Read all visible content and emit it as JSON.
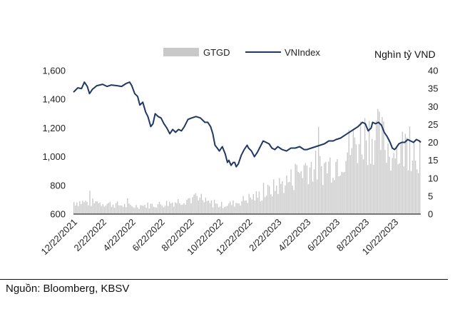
{
  "chart_data": {
    "type": "combo-bar-line",
    "title": "",
    "legend": [
      {
        "name": "GTGD",
        "kind": "bar",
        "color": "#c9c9c9"
      },
      {
        "name": "VNIndex",
        "kind": "line",
        "color": "#1f3864"
      }
    ],
    "legend_position": "top-center",
    "right_axis_label": "Nghìn tỷ VND",
    "left_axis": {
      "range": [
        600,
        1600
      ],
      "ticks": [
        "600",
        "800",
        "1,000",
        "1,200",
        "1,400",
        "1,600"
      ]
    },
    "right_axis": {
      "range": [
        0,
        40
      ],
      "ticks": [
        "0",
        "5",
        "10",
        "15",
        "20",
        "25",
        "30",
        "35",
        "40"
      ]
    },
    "x_tick_labels": [
      "12/22/2021",
      "2/22/2022",
      "4/22/2022",
      "6/22/2022",
      "8/22/2022",
      "10/22/2022",
      "12/22/2022",
      "2/22/2023",
      "4/22/2023",
      "6/22/2023",
      "8/22/2023",
      "10/22/2023"
    ],
    "x_range_months": [
      0,
      23.8
    ],
    "vnindex_series": [
      [
        0.0,
        1450
      ],
      [
        0.3,
        1480
      ],
      [
        0.55,
        1475
      ],
      [
        0.75,
        1520
      ],
      [
        0.95,
        1490
      ],
      [
        1.1,
        1440
      ],
      [
        1.3,
        1470
      ],
      [
        1.6,
        1495
      ],
      [
        2.0,
        1505
      ],
      [
        2.3,
        1490
      ],
      [
        2.6,
        1500
      ],
      [
        3.0,
        1495
      ],
      [
        3.3,
        1490
      ],
      [
        3.6,
        1510
      ],
      [
        3.85,
        1520
      ],
      [
        4.0,
        1495
      ],
      [
        4.2,
        1440
      ],
      [
        4.4,
        1420
      ],
      [
        4.55,
        1360
      ],
      [
        4.75,
        1380
      ],
      [
        4.95,
        1310
      ],
      [
        5.1,
        1280
      ],
      [
        5.3,
        1210
      ],
      [
        5.45,
        1230
      ],
      [
        5.6,
        1300
      ],
      [
        5.8,
        1280
      ],
      [
        6.0,
        1270
      ],
      [
        6.2,
        1230
      ],
      [
        6.4,
        1200
      ],
      [
        6.6,
        1160
      ],
      [
        6.8,
        1190
      ],
      [
        7.0,
        1170
      ],
      [
        7.2,
        1190
      ],
      [
        7.4,
        1180
      ],
      [
        7.6,
        1210
      ],
      [
        7.85,
        1260
      ],
      [
        8.1,
        1270
      ],
      [
        8.4,
        1280
      ],
      [
        8.7,
        1270
      ],
      [
        9.0,
        1240
      ],
      [
        9.2,
        1240
      ],
      [
        9.4,
        1210
      ],
      [
        9.55,
        1160
      ],
      [
        9.7,
        1080
      ],
      [
        9.85,
        1060
      ],
      [
        10.0,
        1040
      ],
      [
        10.2,
        1070
      ],
      [
        10.4,
        1020
      ],
      [
        10.55,
        960
      ],
      [
        10.65,
        975
      ],
      [
        10.8,
        940
      ],
      [
        10.95,
        960
      ],
      [
        11.05,
        960
      ],
      [
        11.15,
        930
      ],
      [
        11.3,
        950
      ],
      [
        11.5,
        1010
      ],
      [
        11.7,
        1050
      ],
      [
        11.9,
        1080
      ],
      [
        12.0,
        1060
      ],
      [
        12.2,
        1040
      ],
      [
        12.4,
        1000
      ],
      [
        12.6,
        1030
      ],
      [
        12.8,
        1070
      ],
      [
        13.0,
        1110
      ],
      [
        13.2,
        1100
      ],
      [
        13.4,
        1090
      ],
      [
        13.6,
        1060
      ],
      [
        13.8,
        1050
      ],
      [
        14.0,
        1070
      ],
      [
        14.3,
        1050
      ],
      [
        14.6,
        1040
      ],
      [
        14.9,
        1060
      ],
      [
        15.2,
        1060
      ],
      [
        15.5,
        1070
      ],
      [
        15.8,
        1050
      ],
      [
        16.0,
        1050
      ],
      [
        16.3,
        1060
      ],
      [
        16.6,
        1070
      ],
      [
        16.9,
        1080
      ],
      [
        17.2,
        1090
      ],
      [
        17.5,
        1110
      ],
      [
        17.8,
        1110
      ],
      [
        18.0,
        1120
      ],
      [
        18.3,
        1130
      ],
      [
        18.6,
        1150
      ],
      [
        18.9,
        1170
      ],
      [
        19.2,
        1190
      ],
      [
        19.5,
        1210
      ],
      [
        19.8,
        1240
      ],
      [
        20.0,
        1230
      ],
      [
        20.2,
        1180
      ],
      [
        20.4,
        1200
      ],
      [
        20.5,
        1240
      ],
      [
        20.7,
        1230
      ],
      [
        20.9,
        1240
      ],
      [
        21.1,
        1220
      ],
      [
        21.3,
        1170
      ],
      [
        21.5,
        1140
      ],
      [
        21.7,
        1100
      ],
      [
        21.85,
        1060
      ],
      [
        22.0,
        1050
      ],
      [
        22.1,
        1060
      ],
      [
        22.3,
        1090
      ],
      [
        22.5,
        1100
      ],
      [
        22.7,
        1100
      ],
      [
        22.9,
        1120
      ],
      [
        23.1,
        1110
      ],
      [
        23.3,
        1100
      ],
      [
        23.5,
        1120
      ],
      [
        23.7,
        1110
      ],
      [
        23.8,
        1100
      ]
    ],
    "gtgd_profile": [
      [
        0.0,
        3.5
      ],
      [
        2.0,
        3.2
      ],
      [
        4.0,
        2.2
      ],
      [
        5.0,
        2.5
      ],
      [
        6.0,
        2.8
      ],
      [
        7.0,
        3.5
      ],
      [
        8.0,
        4.5
      ],
      [
        9.0,
        3.5
      ],
      [
        10.0,
        2.5
      ],
      [
        11.0,
        3.0
      ],
      [
        12.0,
        4.5
      ],
      [
        13.0,
        5.5
      ],
      [
        14.0,
        8.0
      ],
      [
        15.0,
        10.0
      ],
      [
        16.0,
        14.0
      ],
      [
        17.0,
        13.0
      ],
      [
        18.0,
        15.0
      ],
      [
        19.0,
        19.0
      ],
      [
        20.0,
        23.0
      ],
      [
        21.0,
        22.0
      ],
      [
        22.0,
        17.0
      ],
      [
        23.0,
        20.0
      ],
      [
        23.8,
        18.0
      ]
    ],
    "source_note": "Nguồn: Bloomberg, KBSV"
  }
}
